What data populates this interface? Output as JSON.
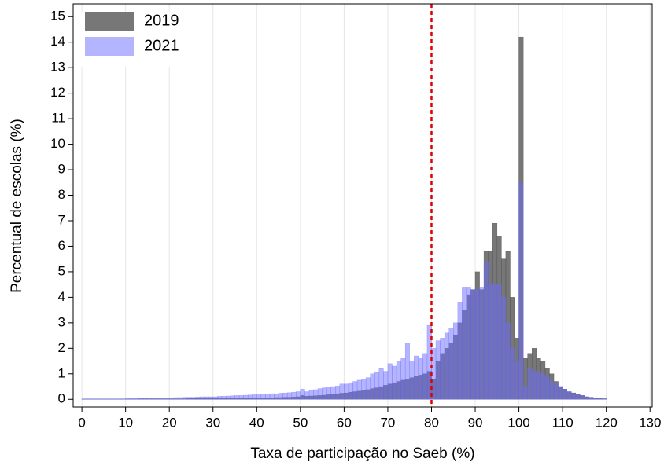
{
  "chart_data": {
    "type": "histogram",
    "x_label": "Taxa de participação no Saeb (%)",
    "y_label": "Percentual de escolas (%)",
    "bins": [
      0,
      1,
      2,
      3,
      4,
      5,
      6,
      7,
      8,
      9,
      10,
      11,
      12,
      13,
      14,
      15,
      16,
      17,
      18,
      19,
      20,
      21,
      22,
      23,
      24,
      25,
      26,
      27,
      28,
      29,
      30,
      31,
      32,
      33,
      34,
      35,
      36,
      37,
      38,
      39,
      40,
      41,
      42,
      43,
      44,
      45,
      46,
      47,
      48,
      49,
      50,
      51,
      52,
      53,
      54,
      55,
      56,
      57,
      58,
      59,
      60,
      61,
      62,
      63,
      64,
      65,
      66,
      67,
      68,
      69,
      70,
      71,
      72,
      73,
      74,
      75,
      76,
      77,
      78,
      79,
      80,
      81,
      82,
      83,
      84,
      85,
      86,
      87,
      88,
      89,
      90,
      91,
      92,
      93,
      94,
      95,
      96,
      97,
      98,
      99,
      100,
      101,
      102,
      103,
      104,
      105,
      106,
      107,
      108,
      109,
      110,
      111,
      112,
      113,
      114,
      115,
      116,
      117,
      118,
      119,
      120
    ],
    "series": [
      {
        "name": "2019",
        "color": "#555555",
        "opacity": 0.8,
        "values": [
          0.01,
          0.01,
          0.01,
          0.01,
          0.01,
          0.01,
          0.01,
          0.01,
          0.01,
          0.01,
          0.01,
          0.01,
          0.01,
          0.02,
          0.02,
          0.02,
          0.02,
          0.02,
          0.02,
          0.02,
          0.02,
          0.02,
          0.02,
          0.02,
          0.03,
          0.03,
          0.03,
          0.03,
          0.03,
          0.03,
          0.04,
          0.04,
          0.04,
          0.04,
          0.04,
          0.04,
          0.04,
          0.04,
          0.04,
          0.04,
          0.05,
          0.05,
          0.06,
          0.06,
          0.07,
          0.07,
          0.08,
          0.08,
          0.09,
          0.1,
          0.15,
          0.12,
          0.13,
          0.14,
          0.15,
          0.16,
          0.18,
          0.2,
          0.22,
          0.24,
          0.25,
          0.28,
          0.3,
          0.32,
          0.35,
          0.38,
          0.42,
          0.45,
          0.5,
          0.55,
          0.6,
          0.65,
          0.7,
          0.75,
          0.8,
          0.85,
          0.9,
          0.95,
          1.0,
          1.1,
          0.8,
          1.5,
          1.8,
          2.0,
          2.2,
          2.5,
          3.0,
          3.5,
          4.1,
          4.3,
          5.0,
          4.3,
          5.8,
          5.8,
          6.9,
          6.4,
          5.5,
          5.8,
          4.0,
          2.4,
          14.2,
          1.6,
          1.8,
          2.0,
          1.6,
          1.5,
          1.2,
          1.0,
          0.7,
          0.5,
          0.4,
          0.3,
          0.25,
          0.2,
          0.15,
          0.1,
          0.08,
          0.05,
          0.04,
          0.02
        ]
      },
      {
        "name": "2021",
        "color": "#6b6bff",
        "opacity": 0.5,
        "values": [
          0.02,
          0.02,
          0.02,
          0.02,
          0.02,
          0.02,
          0.02,
          0.02,
          0.02,
          0.02,
          0.03,
          0.03,
          0.04,
          0.04,
          0.04,
          0.05,
          0.05,
          0.05,
          0.05,
          0.06,
          0.06,
          0.07,
          0.07,
          0.08,
          0.08,
          0.08,
          0.09,
          0.1,
          0.1,
          0.1,
          0.1,
          0.12,
          0.12,
          0.13,
          0.14,
          0.15,
          0.15,
          0.16,
          0.17,
          0.18,
          0.18,
          0.2,
          0.2,
          0.22,
          0.22,
          0.24,
          0.25,
          0.26,
          0.28,
          0.3,
          0.4,
          0.3,
          0.35,
          0.38,
          0.42,
          0.45,
          0.48,
          0.5,
          0.52,
          0.6,
          0.6,
          0.65,
          0.7,
          0.75,
          0.8,
          0.85,
          1.0,
          1.05,
          1.2,
          1.1,
          1.4,
          1.3,
          1.5,
          1.6,
          2.2,
          1.5,
          1.7,
          1.6,
          1.8,
          2.9,
          2.0,
          2.3,
          2.4,
          2.6,
          2.8,
          3.0,
          3.8,
          4.4,
          4.4,
          4.3,
          4.3,
          4.4,
          5.4,
          4.5,
          4.5,
          4.5,
          4.0,
          3.0,
          2.0,
          1.5,
          8.5,
          0.5,
          1.2,
          1.1,
          1.1,
          1.0,
          0.9,
          0.7,
          0.6,
          0.5,
          0.4,
          0.3,
          0.2,
          0.2,
          0.15,
          0.1,
          0.08,
          0.06,
          0.05,
          0.03
        ]
      }
    ],
    "xlim": [
      -2,
      130.5
    ],
    "xticks": [
      0,
      10,
      20,
      30,
      40,
      50,
      60,
      70,
      80,
      90,
      100,
      110,
      120,
      130
    ],
    "ylim": [
      -0.3,
      15.5
    ],
    "yticks": [
      0,
      1,
      2,
      3,
      4,
      5,
      6,
      7,
      8,
      9,
      10,
      11,
      12,
      13,
      14,
      15
    ],
    "grid": "x",
    "legend": "top-left",
    "vline": {
      "x": 80,
      "color": "#e00000"
    }
  }
}
